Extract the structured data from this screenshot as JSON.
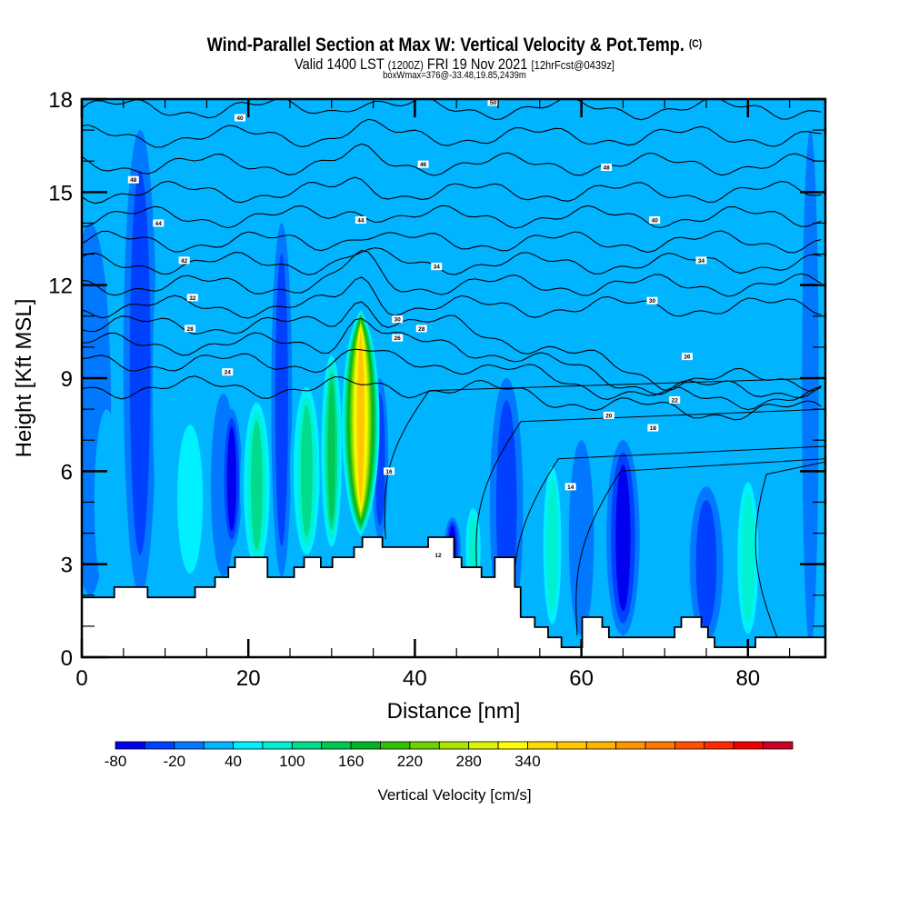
{
  "header": {
    "title": "Wind-Parallel Section at Max W: Vertical Velocity & Pot.Temp.",
    "copyright": "(C)",
    "valid_prefix": "Valid 1400 LST",
    "valid_utc": "(1200Z)",
    "valid_date": "FRI 19 Nov 2021",
    "forecast": "[12hrFcst@0439z]",
    "box_info": "boxWmax=376@-33.48,19.85,2439m"
  },
  "chart_data": {
    "type": "heatmap",
    "title": "Wind-Parallel Section at Max W: Vertical Velocity & Pot.Temp.",
    "xlabel": "Distance [nm]",
    "ylabel": "Height [Kft MSL]",
    "xlim": [
      0,
      89.3
    ],
    "ylim": [
      0,
      18
    ],
    "x_ticks": [
      0,
      20,
      40,
      60,
      80
    ],
    "x_tick_labels": [
      "0",
      "20",
      "40",
      "60",
      "80"
    ],
    "x_minor_step": 5,
    "y_ticks": [
      0,
      3,
      6,
      9,
      12,
      15,
      18
    ],
    "y_tick_labels": [
      "0",
      "3",
      "6",
      "9",
      "12",
      "15",
      "18"
    ],
    "y_minor_step": 1,
    "colorbar": {
      "label": "Vertical Velocity [cm/s]",
      "boundaries_start": -80,
      "boundary_step": 30,
      "tick_labels": [
        "-80",
        "-20",
        "40",
        "100",
        "160",
        "220",
        "280",
        "340"
      ],
      "colors": [
        "#0000f0",
        "#0040ff",
        "#0078ff",
        "#00b4ff",
        "#00f0ff",
        "#00f0d2",
        "#00dc8c",
        "#00c850",
        "#00b428",
        "#32c000",
        "#6ed200",
        "#aae600",
        "#dcf500",
        "#ffff00",
        "#ffdc00",
        "#ffc800",
        "#ffb400",
        "#ff9600",
        "#ff7800",
        "#ff5000",
        "#ff2800",
        "#f00000",
        "#c80028"
      ]
    },
    "max_w_cm_s": 376,
    "updraft_core": {
      "x_nm": 33.5,
      "bottom_kft": 3.9,
      "top_kft": 11.2,
      "peak_cm_s": 376
    },
    "velocity_columns": [
      {
        "x_nm": 1.0,
        "w": 5,
        "bottom": 2,
        "top": 14,
        "value": -20
      },
      {
        "x_nm": 3.0,
        "w": 3,
        "bottom": 2,
        "top": 8,
        "value": 10
      },
      {
        "x_nm": 7.0,
        "w": 4,
        "bottom": 2,
        "top": 17,
        "value": -50
      },
      {
        "x_nm": 10.5,
        "w": 4,
        "bottom": 2.2,
        "top": 15,
        "value": 10
      },
      {
        "x_nm": 13.0,
        "w": 5,
        "bottom": 2.2,
        "top": 8,
        "value": 40
      },
      {
        "x_nm": 17.0,
        "w": 3,
        "bottom": 2.6,
        "top": 8.5,
        "value": -20
      },
      {
        "x_nm": 18.0,
        "w": 2.5,
        "bottom": 3.5,
        "top": 8,
        "value": -80
      },
      {
        "x_nm": 21.0,
        "w": 4,
        "bottom": 2.6,
        "top": 8.5,
        "value": 100
      },
      {
        "x_nm": 24.0,
        "w": 2.5,
        "bottom": 2.6,
        "top": 14,
        "value": -50
      },
      {
        "x_nm": 27.0,
        "w": 4,
        "bottom": 3,
        "top": 9,
        "value": 100
      },
      {
        "x_nm": 30.0,
        "w": 3,
        "bottom": 3.3,
        "top": 10,
        "value": 130
      },
      {
        "x_nm": 35.8,
        "w": 2,
        "bottom": 3.8,
        "top": 9,
        "value": -50
      },
      {
        "x_nm": 44.5,
        "w": 2,
        "bottom": 2.5,
        "top": 4.5,
        "value": -80
      },
      {
        "x_nm": 47.0,
        "w": 2.5,
        "bottom": 2,
        "top": 5,
        "value": 70
      },
      {
        "x_nm": 51.0,
        "w": 4,
        "bottom": 0.7,
        "top": 9,
        "value": -50
      },
      {
        "x_nm": 56.5,
        "w": 3,
        "bottom": 0.7,
        "top": 6.5,
        "value": 70
      },
      {
        "x_nm": 60.0,
        "w": 3,
        "bottom": 0.7,
        "top": 7,
        "value": -20
      },
      {
        "x_nm": 65.0,
        "w": 4,
        "bottom": 0.7,
        "top": 7,
        "value": -80
      },
      {
        "x_nm": 69.0,
        "w": 3,
        "bottom": 0.5,
        "top": 6,
        "value": 10
      },
      {
        "x_nm": 75.0,
        "w": 4,
        "bottom": 0.5,
        "top": 5.5,
        "value": -50
      },
      {
        "x_nm": 80.0,
        "w": 3.5,
        "bottom": 0.4,
        "top": 6,
        "value": 70
      },
      {
        "x_nm": 87.5,
        "w": 2,
        "bottom": 0.3,
        "top": 17,
        "value": -20
      }
    ],
    "terrain_kft": [
      [
        0,
        1.93
      ],
      [
        3.9,
        2.26
      ],
      [
        7.9,
        1.93
      ],
      [
        13.6,
        2.26
      ],
      [
        16.0,
        2.58
      ],
      [
        17.6,
        2.9
      ],
      [
        18.4,
        3.22
      ],
      [
        22.3,
        2.58
      ],
      [
        25.5,
        2.9
      ],
      [
        26.7,
        3.22
      ],
      [
        28.7,
        2.9
      ],
      [
        30.1,
        3.22
      ],
      [
        32.7,
        3.55
      ],
      [
        33.7,
        3.87
      ],
      [
        36.1,
        3.55
      ],
      [
        40.0,
        3.55
      ],
      [
        41.6,
        3.87
      ],
      [
        44.7,
        3.22
      ],
      [
        45.6,
        2.9
      ],
      [
        48.0,
        2.58
      ],
      [
        49.6,
        3.22
      ],
      [
        52.0,
        2.26
      ],
      [
        52.7,
        1.29
      ],
      [
        54.4,
        0.97
      ],
      [
        56.0,
        0.64
      ],
      [
        57.6,
        0.32
      ],
      [
        60.1,
        1.29
      ],
      [
        62.5,
        0.97
      ],
      [
        63.3,
        0.64
      ],
      [
        71.2,
        0.97
      ],
      [
        72.0,
        1.29
      ],
      [
        74.4,
        0.97
      ],
      [
        75.2,
        0.64
      ],
      [
        76.0,
        0.32
      ],
      [
        80.9,
        0.64
      ],
      [
        89.7,
        0.32
      ]
    ],
    "theta_contours": {
      "levels_kft": [
        17.7,
        16.8,
        15.9,
        15.0,
        14.2,
        13.4,
        12.7,
        12.0,
        11.3,
        10.7,
        10.1,
        9.5,
        8.7
      ],
      "labels": [
        {
          "text": "40",
          "x_nm": 19.0,
          "y_kft": 17.4
        },
        {
          "text": "50",
          "x_nm": 49.4,
          "y_kft": 17.9
        },
        {
          "text": "48",
          "x_nm": 6.2,
          "y_kft": 15.4
        },
        {
          "text": "46",
          "x_nm": 41.0,
          "y_kft": 15.9
        },
        {
          "text": "48",
          "x_nm": 63.0,
          "y_kft": 15.8
        },
        {
          "text": "44",
          "x_nm": 9.2,
          "y_kft": 14.0
        },
        {
          "text": "44",
          "x_nm": 33.5,
          "y_kft": 14.1
        },
        {
          "text": "40",
          "x_nm": 68.8,
          "y_kft": 14.1
        },
        {
          "text": "42",
          "x_nm": 12.3,
          "y_kft": 12.8
        },
        {
          "text": "34",
          "x_nm": 42.6,
          "y_kft": 12.6
        },
        {
          "text": "34",
          "x_nm": 74.4,
          "y_kft": 12.8
        },
        {
          "text": "32",
          "x_nm": 13.3,
          "y_kft": 11.6
        },
        {
          "text": "30",
          "x_nm": 68.5,
          "y_kft": 11.5
        },
        {
          "text": "28",
          "x_nm": 13.0,
          "y_kft": 10.6
        },
        {
          "text": "30",
          "x_nm": 37.9,
          "y_kft": 10.9
        },
        {
          "text": "28",
          "x_nm": 40.8,
          "y_kft": 10.6
        },
        {
          "text": "26",
          "x_nm": 37.9,
          "y_kft": 10.3
        },
        {
          "text": "26",
          "x_nm": 72.7,
          "y_kft": 9.7
        },
        {
          "text": "24",
          "x_nm": 17.5,
          "y_kft": 9.2
        },
        {
          "text": "22",
          "x_nm": 71.2,
          "y_kft": 8.3
        },
        {
          "text": "20",
          "x_nm": 63.3,
          "y_kft": 7.8
        },
        {
          "text": "18",
          "x_nm": 68.6,
          "y_kft": 7.4
        },
        {
          "text": "16",
          "x_nm": 36.9,
          "y_kft": 6.0
        },
        {
          "text": "14",
          "x_nm": 58.7,
          "y_kft": 5.5
        },
        {
          "text": "12",
          "x_nm": 42.8,
          "y_kft": 3.3
        }
      ]
    }
  }
}
